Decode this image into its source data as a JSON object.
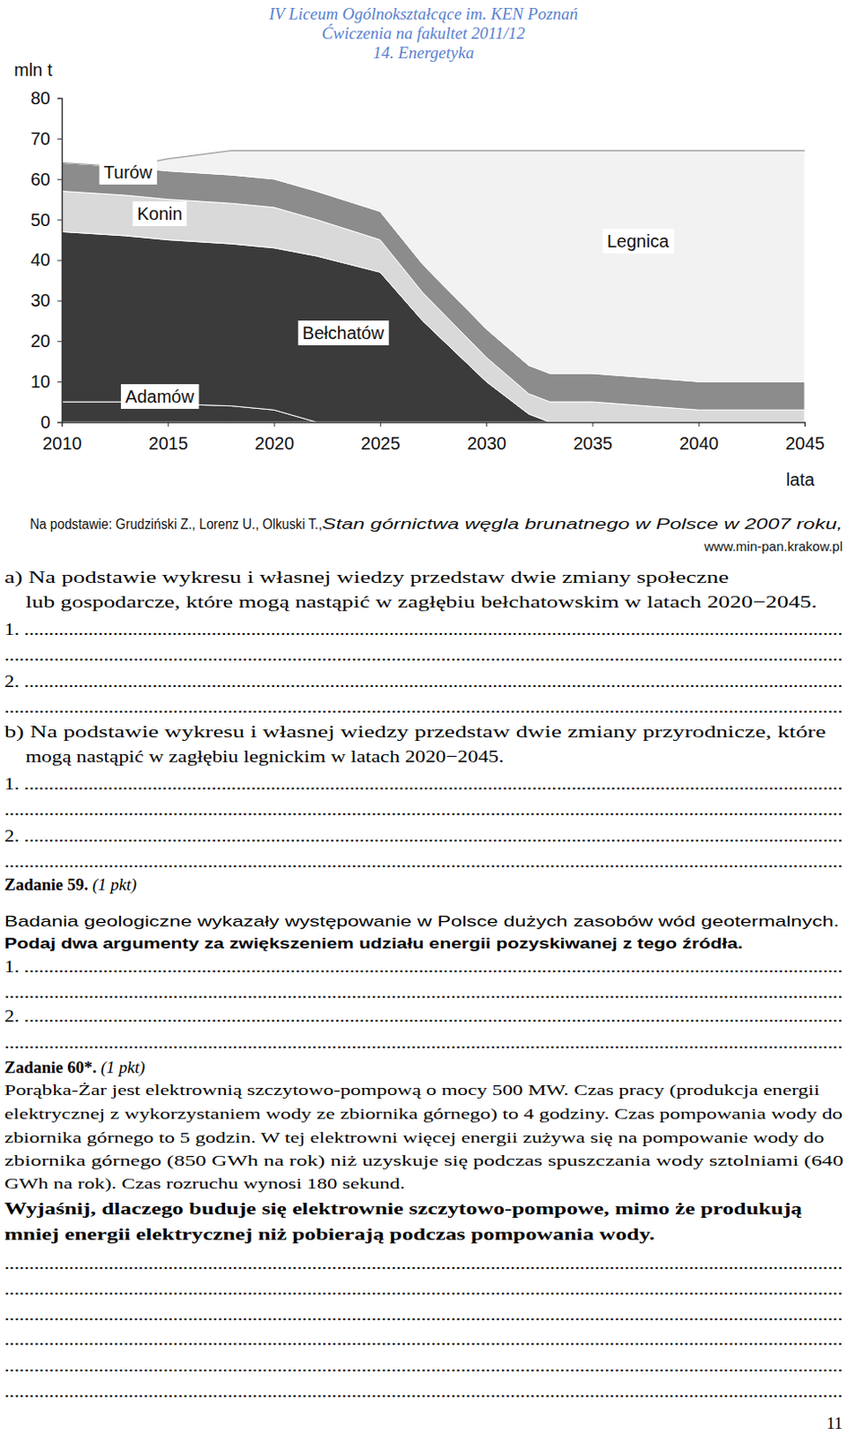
{
  "header": [
    "IV Liceum Ogólnokształcące im. KEN Poznań",
    "Ćwiczenia na fakultet 2011/12",
    "14. Energetyka"
  ],
  "chart_data": {
    "type": "area",
    "stacked": true,
    "ylabel": "mln t",
    "xlabel": "lata",
    "x": [
      2010,
      2013,
      2015,
      2018,
      2020,
      2022,
      2025,
      2027,
      2030,
      2032,
      2033,
      2035,
      2040,
      2045
    ],
    "series": [
      {
        "name": "Adamów",
        "color": "#3b3b3b",
        "values": [
          5,
          5,
          4.5,
          4,
          3,
          0,
          0,
          0,
          0,
          0,
          0,
          0,
          0,
          0
        ]
      },
      {
        "name": "Bełchatów",
        "color": "#3b3b3b",
        "values": [
          42,
          41,
          40.5,
          40,
          40,
          41,
          37,
          25,
          10,
          2,
          0,
          0,
          0,
          0
        ]
      },
      {
        "name": "Konin",
        "color": "#d9d9d9",
        "values": [
          10,
          10,
          10,
          10,
          10,
          9,
          8,
          7,
          6,
          5,
          5,
          5,
          3,
          3
        ]
      },
      {
        "name": "Turów",
        "color": "#8c8c8c",
        "values": [
          7,
          7,
          7,
          7,
          7,
          7,
          7,
          7,
          7,
          7,
          7,
          7,
          7,
          7
        ]
      },
      {
        "name": "Legnica",
        "color": "#f2f2f2",
        "values": [
          0,
          0,
          3,
          6,
          7,
          10,
          15,
          28,
          44,
          53,
          55,
          55,
          57,
          57
        ]
      }
    ],
    "xlim": [
      2010,
      2045
    ],
    "xticks": [
      2010,
      2015,
      2020,
      2025,
      2030,
      2035,
      2040,
      2045
    ],
    "ylim": [
      0,
      80
    ],
    "yticks": [
      0,
      10,
      20,
      30,
      40,
      50,
      60,
      70,
      80
    ]
  },
  "source": {
    "text": "Na podstawie: Grudziński Z., Lorenz U., Olkuski T., ",
    "title": "Stan górnictwa węgla brunatnego w Polsce w 2007 roku,",
    "url": "www.min-pan.krakow.pl"
  },
  "text_lines": [
    [
      "a) Na podstawie wykresu i własnej wiedzy przedstaw dwie zmiany społeczne"
    ],
    [
      "lub gospodarcze, które mogą nastąpić w zagłębiu bełchatowskim w latach 2020−2045."
    ],
    [
      "1. ......................................................................................................................................................................"
    ],
    [
      "........................................................................................................................................................................."
    ],
    [
      "2. ......................................................................................................................................................................"
    ],
    [
      "........................................................................................................................................................................."
    ],
    [
      "b) Na podstawie wykresu i własnej wiedzy przedstaw dwie zmiany przyrodnicze, które"
    ],
    [
      "mogą nastąpić w zagłębiu legnickim w latach 2020−2045."
    ],
    [
      "1. ......................................................................................................................................................................"
    ],
    [
      "........................................................................................................................................................................."
    ],
    [
      "2. ......................................................................................................................................................................"
    ],
    [
      "........................................................................................................................................................................."
    ],
    [
      "Zadanie 59.",
      " (1 pkt)"
    ],
    [
      "Badania geologiczne wykazały występowanie w Polsce dużych zasobów wód geotermalnych."
    ],
    [
      "Podaj dwa argumenty za zwiększeniem udziału energii pozyskiwanej z tego źródła."
    ],
    [
      "1. ......................................................................................................................................................................"
    ],
    [
      "........................................................................................................................................................................."
    ],
    [
      "2. ......................................................................................................................................................................"
    ],
    [
      "........................................................................................................................................................................."
    ],
    [
      "Zadanie 60*.",
      " (1 pkt)"
    ],
    [
      "Porąbka-Żar jest elektrownią szczytowo-pompową o mocy 500 MW. Czas pracy (produkcja energii"
    ],
    [
      "elektrycznej z wykorzystaniem wody ze zbiornika górnego) to 4 godziny. Czas pompowania wody do"
    ],
    [
      "zbiornika górnego to 5 godzin. W tej elektrowni więcej energii zużywa się na pompowanie wody do"
    ],
    [
      "zbiornika górnego (850 GWh na rok) niż uzyskuje się podczas spuszczania wody sztolniami (640"
    ],
    [
      "GWh na rok). Czas rozruchu wynosi 180 sekund."
    ],
    [
      "Wyjaśnij, dlaczego buduje się elektrownie szczytowo-pompowe, mimo że produkują"
    ],
    [
      "mniej energii elektrycznej niż pobierają podczas pompowania wody."
    ],
    [
      "........................................................................................................................................................................."
    ],
    [
      "........................................................................................................................................................................."
    ],
    [
      "........................................................................................................................................................................."
    ],
    [
      "........................................................................................................................................................................."
    ],
    [
      "........................................................................................................................................................................."
    ],
    [
      "........................................................................................................................................................................."
    ]
  ],
  "page_number": "11"
}
